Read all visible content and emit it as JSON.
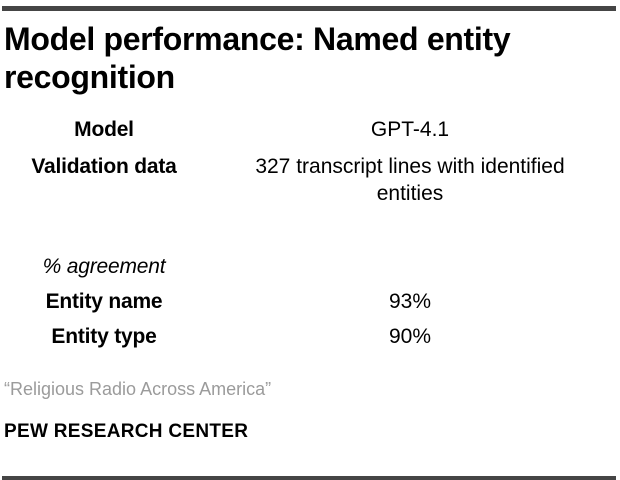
{
  "header": {
    "title": "Model performance: Named entity recognition"
  },
  "table": {
    "rows": [
      {
        "label": "Model",
        "value": "GPT-4.1"
      },
      {
        "label": "Validation data",
        "value": "327 transcript lines with identified entities"
      }
    ],
    "section_label": "% agreement",
    "metrics": [
      {
        "label": "Entity name",
        "value": "93%"
      },
      {
        "label": "Entity type",
        "value": "90%"
      }
    ]
  },
  "footer": {
    "source": "“Religious Radio Across America”",
    "org": "PEW RESEARCH CENTER"
  },
  "colors": {
    "text": "#000000",
    "muted_gray": "#9b9b9b",
    "rule_gray": "#454545",
    "background": "#ffffff"
  },
  "chart_data": {
    "type": "table",
    "title": "Model performance: Named entity recognition",
    "rows": [
      [
        "Model",
        "GPT-4.1"
      ],
      [
        "Validation data",
        "327 transcript lines with identified entities"
      ]
    ],
    "section": "% agreement",
    "metrics": [
      {
        "label": "Entity name",
        "pct": 93
      },
      {
        "label": "Entity type",
        "pct": 90
      }
    ],
    "source": "“Religious Radio Across America”",
    "org": "PEW RESEARCH CENTER"
  }
}
